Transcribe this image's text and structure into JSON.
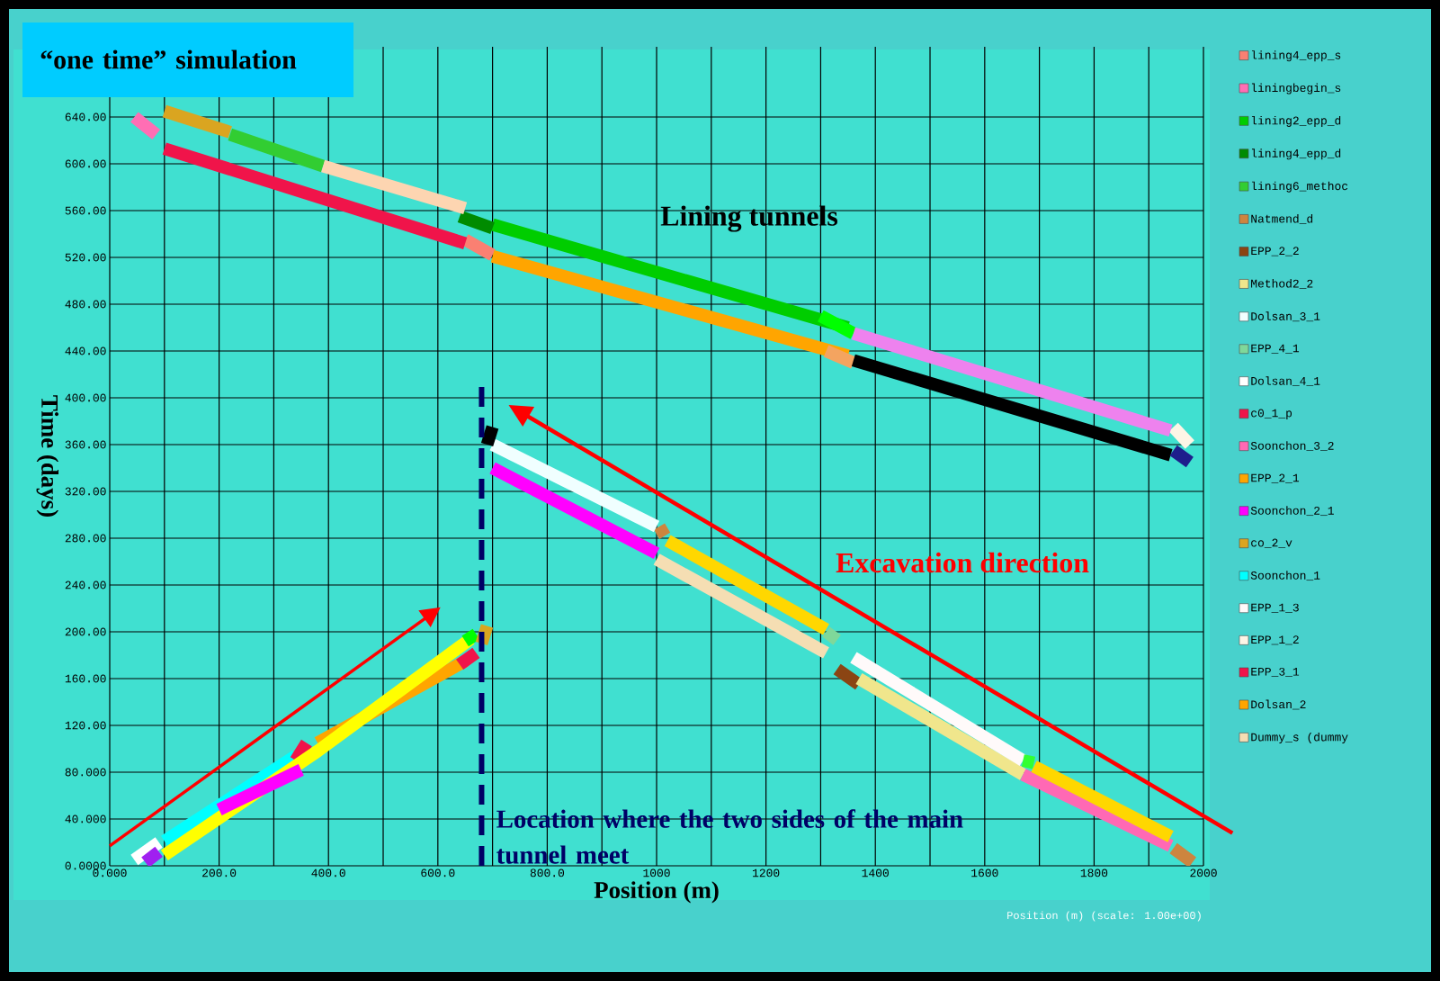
{
  "chart_data": {
    "type": "line",
    "title": "“one time” simulation",
    "xlabel": "Position (m)",
    "ylabel": "Time (days)",
    "xlim": [
      0,
      2000
    ],
    "ylim": [
      0,
      700
    ],
    "xticks": [
      {
        "value": 0,
        "label": "0.000"
      },
      {
        "value": 100,
        "label": null
      },
      {
        "value": 200,
        "label": "200.0"
      },
      {
        "value": 300,
        "label": null
      },
      {
        "value": 400,
        "label": "400.0"
      },
      {
        "value": 500,
        "label": null
      },
      {
        "value": 600,
        "label": "600.0"
      },
      {
        "value": 700,
        "label": null
      },
      {
        "value": 800,
        "label": "800.0"
      },
      {
        "value": 900,
        "label": null
      },
      1000,
      {
        "value": 1100,
        "label": null
      },
      1200,
      {
        "value": 1300,
        "label": null
      },
      1400,
      {
        "value": 1500,
        "label": null
      },
      1600,
      {
        "value": 1700,
        "label": null
      },
      1800,
      {
        "value": 1900,
        "label": null
      },
      2000
    ],
    "yticks": [
      {
        "value": 0,
        "label": "0.0000"
      },
      {
        "value": 40,
        "label": "40.000"
      },
      {
        "value": 80,
        "label": "80.000"
      },
      {
        "value": 120,
        "label": "120.00"
      },
      {
        "value": 160,
        "label": "160.00"
      },
      {
        "value": 200,
        "label": "200.00"
      },
      {
        "value": 240,
        "label": "240.00"
      },
      {
        "value": 280,
        "label": "280.00"
      },
      {
        "value": 320,
        "label": "320.00"
      },
      {
        "value": 360,
        "label": "360.00"
      },
      {
        "value": 400,
        "label": "400.00"
      },
      {
        "value": 440,
        "label": "440.00"
      },
      {
        "value": 480,
        "label": "480.00"
      },
      {
        "value": 520,
        "label": "520.00"
      },
      {
        "value": 560,
        "label": "560.00"
      },
      {
        "value": 600,
        "label": "600.00"
      },
      {
        "value": 640,
        "label": "640.00"
      }
    ],
    "grid": true,
    "legend": "right",
    "series": [
      {
        "name": "lining4_epp_s",
        "color": "#fa8072",
        "x": [
          650,
          700
        ],
        "values": [
          535,
          522
        ]
      },
      {
        "name": "liningbegin_s",
        "color": "#ff6eb4",
        "x": [
          45,
          85
        ],
        "values": [
          640,
          625
        ]
      },
      {
        "name": "lining2_epp_d",
        "color": "#00cd00",
        "x": [
          700,
          1350
        ],
        "values": [
          548,
          460
        ]
      },
      {
        "name": "lining4_epp_d",
        "color": "#008b00",
        "x": [
          640,
          700
        ],
        "values": [
          555,
          545
        ]
      },
      {
        "name": "lining6_methoc",
        "color": "#32cd32",
        "x": [
          220,
          390
        ],
        "values": [
          625,
          598
        ]
      },
      {
        "name": "Natmend_d",
        "color": "#cd853f",
        "x": [
          1005,
          1015
        ],
        "values": [
          290,
          282
        ]
      },
      {
        "name": "EPP_2_2",
        "color": "#8b4513",
        "x": [
          1330,
          1370
        ],
        "values": [
          168,
          155
        ]
      },
      {
        "name": "Method2_2",
        "color": "#f0e68c",
        "x": [
          1370,
          1670
        ],
        "values": [
          160,
          78
        ]
      },
      {
        "name": "Dolsan_3_1",
        "color": "#f0ffff",
        "x": [
          700,
          1000
        ],
        "values": [
          360,
          290
        ]
      },
      {
        "name": "EPP_4_1",
        "color": "#7fd89a",
        "x": [
          1310,
          1330
        ],
        "values": [
          200,
          193
        ]
      },
      {
        "name": "Dolsan_4_1",
        "color": "#ffffff",
        "x": [
          45,
          90
        ],
        "values": [
          5,
          20
        ]
      },
      {
        "name": "c0_1_p",
        "color": "#f0144a",
        "x": [
          100,
          650
        ],
        "values": [
          613,
          532
        ]
      },
      {
        "name": "Soonchon_3_2",
        "color": "#ff69b4",
        "x": [
          1670,
          1940
        ],
        "values": [
          78,
          17
        ]
      },
      {
        "name": "EPP_2_1",
        "color": "#ffa500",
        "x": [
          700,
          1350
        ],
        "values": [
          521,
          436
        ]
      },
      {
        "name": "Soonchon_2_1",
        "color": "#ff00ff",
        "x": [
          700,
          1000
        ],
        "values": [
          340,
          267
        ]
      },
      {
        "name": "co_2_v",
        "color": "#daa520",
        "x": [
          100,
          220
        ],
        "values": [
          645,
          627
        ]
      },
      {
        "name": "Soonchon_1",
        "color": "#00ffff",
        "x": [
          100,
          340
        ],
        "values": [
          21,
          94
        ]
      },
      {
        "name": "EPP_1_3",
        "color": "#fffafa",
        "x": [
          1360,
          1670
        ],
        "values": [
          178,
          90
        ]
      },
      {
        "name": "EPP_1_2",
        "color": "#fdf5e6",
        "x": [
          1945,
          1975
        ],
        "values": [
          375,
          360
        ]
      },
      {
        "name": "EPP_3_1",
        "color": "#f0144a",
        "x": [
          340,
          360
        ],
        "values": [
          90,
          105
        ]
      },
      {
        "name": "Dolsan_2",
        "color": "#ffa500",
        "x": [
          380,
          650
        ],
        "values": [
          105,
          175
        ]
      },
      {
        "name": "Dummy_s (dummy",
        "color": "#f5deb3",
        "x": [
          1000,
          1310
        ],
        "values": [
          262,
          182
        ]
      },
      {
        "color": "#fdd5b1",
        "x": [
          390,
          650
        ],
        "values": [
          598,
          562
        ]
      },
      {
        "color": "#00ff00",
        "x": [
          1300,
          1360
        ],
        "values": [
          470,
          455
        ]
      },
      {
        "color": "#f4a460",
        "x": [
          1310,
          1360
        ],
        "values": [
          440,
          430
        ]
      },
      {
        "color": "#ee82ee",
        "x": [
          1360,
          1940
        ],
        "values": [
          455,
          372
        ]
      },
      {
        "color": "#000000",
        "x": [
          1360,
          1940
        ],
        "values": [
          432,
          351
        ]
      },
      {
        "color": "#1e1e8c",
        "x": [
          1945,
          1975
        ],
        "values": [
          355,
          345
        ]
      },
      {
        "color": "#a020f0",
        "x": [
          65,
          90
        ],
        "values": [
          3,
          12
        ]
      },
      {
        "color": "#ffff00",
        "x": [
          100,
          380,
          660
        ],
        "values": [
          9,
          98,
          194
        ]
      },
      {
        "color": "#ff00ff",
        "x": [
          200,
          350
        ],
        "values": [
          48,
          82
        ]
      },
      {
        "color": "#f0144a",
        "x": [
          640,
          670
        ],
        "values": [
          172,
          182
        ]
      },
      {
        "color": "#00ff00",
        "x": [
          650,
          670
        ],
        "values": [
          192,
          198
        ]
      },
      {
        "color": "#daa520",
        "x": [
          680,
          690
        ],
        "values": [
          190,
          205
        ]
      },
      {
        "color": "#000000",
        "x": [
          690,
          700
        ],
        "values": [
          360,
          375
        ]
      },
      {
        "color": "#ffd700",
        "x": [
          1020,
          1310
        ],
        "values": [
          278,
          202
        ]
      },
      {
        "color": "#32ff32",
        "x": [
          1670,
          1690
        ],
        "values": [
          90,
          88
        ]
      },
      {
        "color": "#ffd700",
        "x": [
          1690,
          1940
        ],
        "values": [
          85,
          25
        ]
      },
      {
        "color": "#cd853f",
        "x": [
          1945,
          1980
        ],
        "values": [
          15,
          3
        ]
      }
    ],
    "ref_lines": [
      {
        "axis": "x",
        "value": 680,
        "label": "Location where the two sides of the main tunnel meet",
        "color": "#000066",
        "line_style": "dashed"
      }
    ],
    "annotations": [
      "Lining tunnels",
      "Excavation direction",
      "Position (m) (scale: 1.00e+00)"
    ]
  }
}
